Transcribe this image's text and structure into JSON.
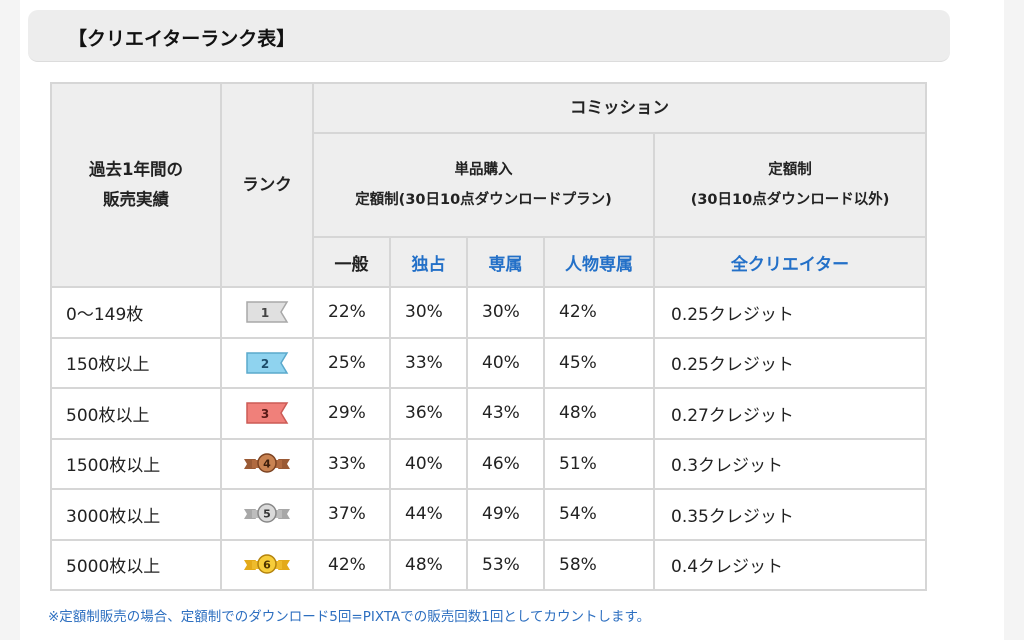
{
  "title": "【クリエイターランク表】",
  "headers": {
    "performance_line1": "過去1年間の",
    "performance_line2": "販売実績",
    "rank": "ランク",
    "commission": "コミッション",
    "single_line1": "単品購入",
    "single_line2": "定額制(30日10点ダウンロードプラン)",
    "flat_line1": "定額制",
    "flat_line2": "(30日10点ダウンロード以外)",
    "general": "一般",
    "exclusive": "独占",
    "dedicated": "専属",
    "person_dedicated": "人物専属",
    "all_creators": "全クリエイター"
  },
  "colors": {
    "accent_blue": "#2370c8",
    "header_bg": "#eeeeee",
    "border": "#d6d6d6"
  },
  "rows": [
    {
      "sales": "0〜149枚",
      "rank": "1",
      "badge": "gray-flag-icon",
      "general": "22%",
      "exclusive": "30%",
      "dedicated": "30%",
      "person": "42%",
      "credit": "0.25クレジット"
    },
    {
      "sales": "150枚以上",
      "rank": "2",
      "badge": "blue-flag-icon",
      "general": "25%",
      "exclusive": "33%",
      "dedicated": "40%",
      "person": "45%",
      "credit": "0.25クレジット"
    },
    {
      "sales": "500枚以上",
      "rank": "3",
      "badge": "red-flag-icon",
      "general": "29%",
      "exclusive": "36%",
      "dedicated": "43%",
      "person": "48%",
      "credit": "0.27クレジット"
    },
    {
      "sales": "1500枚以上",
      "rank": "4",
      "badge": "bronze-medal-icon",
      "general": "33%",
      "exclusive": "40%",
      "dedicated": "46%",
      "person": "51%",
      "credit": "0.3クレジット"
    },
    {
      "sales": "3000枚以上",
      "rank": "5",
      "badge": "silver-medal-icon",
      "general": "37%",
      "exclusive": "44%",
      "dedicated": "49%",
      "person": "54%",
      "credit": "0.35クレジット"
    },
    {
      "sales": "5000枚以上",
      "rank": "6",
      "badge": "gold-medal-icon",
      "general": "42%",
      "exclusive": "48%",
      "dedicated": "53%",
      "person": "58%",
      "credit": "0.4クレジット"
    }
  ],
  "footnote": "※定額制販売の場合、定額制でのダウンロード5回=PIXTAでの販売回数1回としてカウントします。"
}
